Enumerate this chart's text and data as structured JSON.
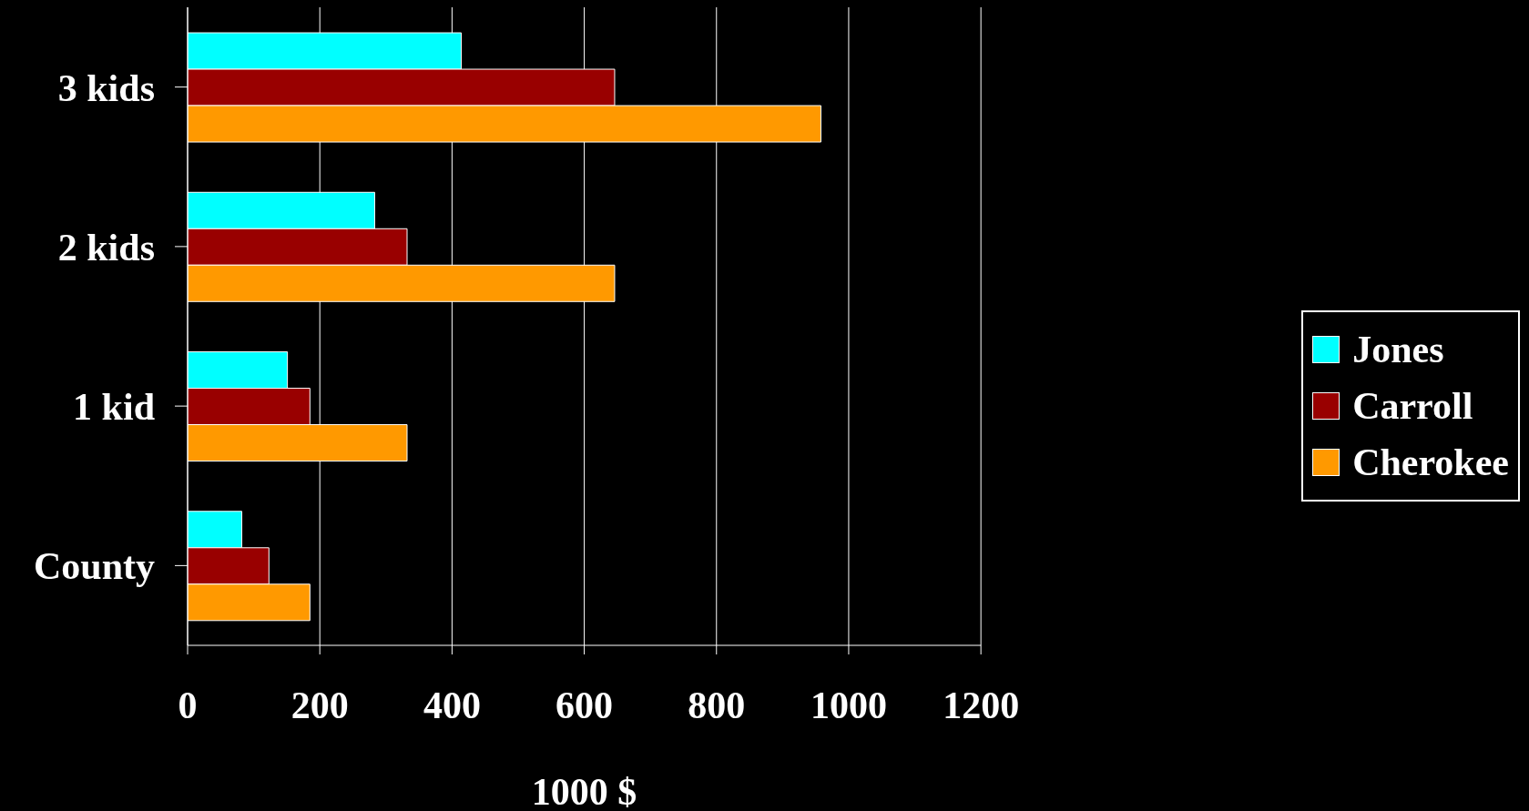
{
  "chart_data": {
    "type": "bar",
    "orientation": "horizontal",
    "xlabel": "1000 $",
    "categories": [
      "3 kids",
      "2 kids",
      "1 kid",
      "County"
    ],
    "series": [
      {
        "name": "Jones",
        "color": "#00ffff",
        "values": [
          414,
          283,
          151,
          82
        ]
      },
      {
        "name": "Carroll",
        "color": "#990000",
        "values": [
          646,
          332,
          185,
          123
        ]
      },
      {
        "name": "Cherokee",
        "color": "#ff9900",
        "values": [
          958,
          646,
          332,
          185
        ]
      }
    ],
    "xlim": [
      0,
      1200
    ],
    "xticks": [
      0,
      200,
      400,
      600,
      800,
      1000,
      1200
    ],
    "grid": "x",
    "legend": "right"
  }
}
